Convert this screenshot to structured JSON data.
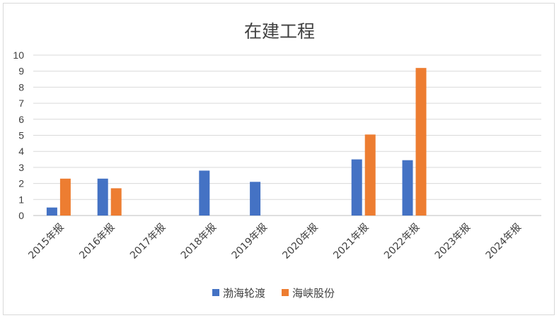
{
  "chart_data": {
    "type": "bar",
    "title": "在建工程",
    "categories": [
      "2015年报",
      "2016年报",
      "2017年报",
      "2018年报",
      "2019年报",
      "2020年报",
      "2021年报",
      "2022年报",
      "2023年报",
      "2024年报"
    ],
    "series": [
      {
        "name": "渤海轮渡",
        "color": "#4472C4",
        "values": [
          0.5,
          2.3,
          0,
          2.8,
          2.1,
          0,
          3.5,
          3.45,
          0,
          0
        ]
      },
      {
        "name": "海峡股份",
        "color": "#ED7D31",
        "values": [
          2.3,
          1.7,
          0,
          0,
          0,
          0,
          5.05,
          9.2,
          0,
          0
        ]
      }
    ],
    "yticks": [
      "0",
      "1",
      "2",
      "3",
      "4",
      "5",
      "6",
      "7",
      "8",
      "9",
      "10"
    ],
    "ylim": [
      0,
      10
    ],
    "grid": true,
    "legend": "bottom"
  }
}
